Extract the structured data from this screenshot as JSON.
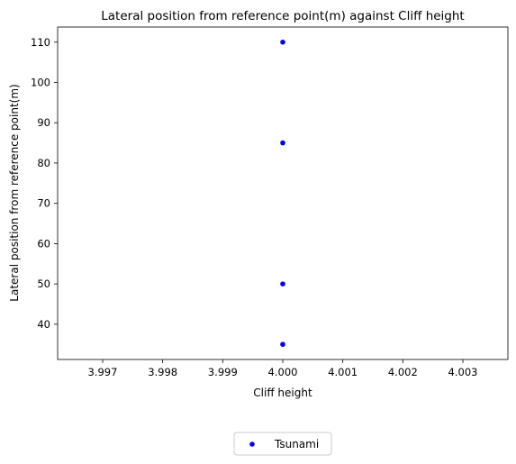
{
  "chart_data": {
    "type": "scatter",
    "title": "Lateral position from reference point(m) against Cliff height",
    "xlabel": "Cliff height",
    "ylabel": "Lateral position from reference point(m)",
    "xlim": [
      3.99965,
      4.00035
    ],
    "ylim": [
      31.25,
      113.75
    ],
    "xticks": [
      3.997,
      3.998,
      3.999,
      4.0,
      4.001,
      4.002,
      4.003
    ],
    "xtick_labels": [
      "3.997",
      "3.998",
      "3.999",
      "4.000",
      "4.001",
      "4.002",
      "4.003"
    ],
    "yticks": [
      40,
      50,
      60,
      70,
      80,
      90,
      100,
      110
    ],
    "ytick_labels": [
      "40",
      "50",
      "60",
      "70",
      "80",
      "90",
      "100",
      "110"
    ],
    "grid": false,
    "legend_position": "bottom-center-outside",
    "series": [
      {
        "name": "Tsunami",
        "color": "#0000ff",
        "points": [
          {
            "x": 4.0,
            "y": 110
          },
          {
            "x": 4.0,
            "y": 85
          },
          {
            "x": 4.0,
            "y": 50
          },
          {
            "x": 4.0,
            "y": 35
          }
        ]
      }
    ]
  }
}
